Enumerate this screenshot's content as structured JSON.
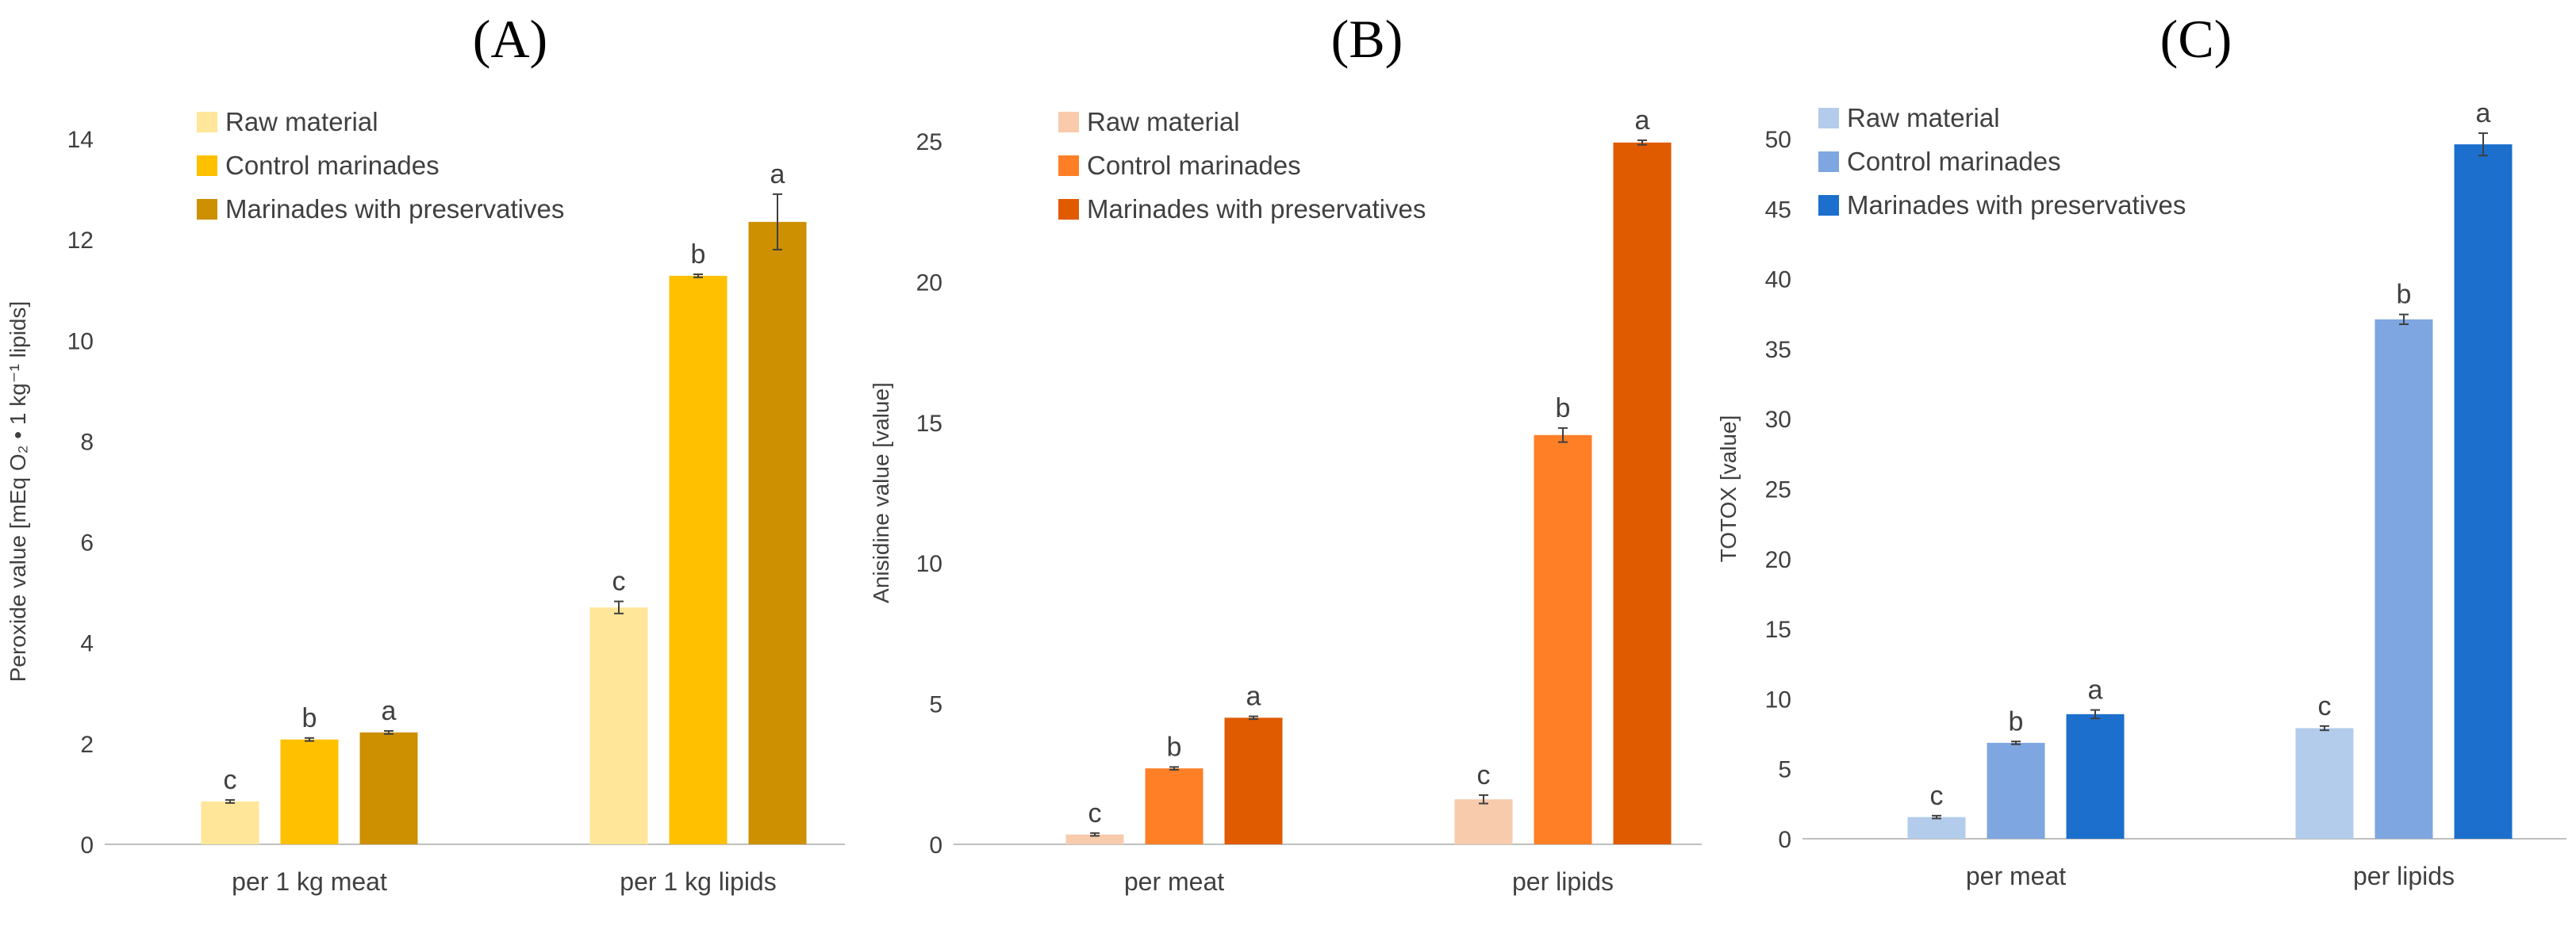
{
  "chart_data": [
    {
      "type": "bar",
      "title": "(A)",
      "ylabel": "Peroxide value [mEq O₂ • 1 kg⁻¹ lipids]",
      "xlabel": "",
      "ylim": [
        0,
        14
      ],
      "yticks": [
        0,
        2,
        4,
        6,
        8,
        10,
        12,
        14
      ],
      "categories": [
        "per 1 kg meat",
        "per 1 kg lipids"
      ],
      "series": [
        {
          "name": "Raw material",
          "color": "#FFE699",
          "values": [
            0.85,
            4.7
          ],
          "errors": [
            0.03,
            0.12
          ],
          "labels": [
            "c",
            "c"
          ]
        },
        {
          "name": "Control marinades",
          "color": "#FFC000",
          "values": [
            2.08,
            11.28
          ],
          "errors": [
            0.03,
            0.03
          ],
          "labels": [
            "b",
            "b"
          ]
        },
        {
          "name": "Marinades with preservatives",
          "color": "#CC9000",
          "values": [
            2.22,
            12.35
          ],
          "errors": [
            0.03,
            0.55
          ],
          "labels": [
            "a",
            "a"
          ]
        }
      ]
    },
    {
      "type": "bar",
      "title": "(B)",
      "ylabel": "Anisidine value [value]",
      "xlabel": "",
      "ylim": [
        0,
        25
      ],
      "yticks": [
        0,
        5,
        10,
        15,
        20,
        25
      ],
      "categories": [
        "per meat",
        "per lipids"
      ],
      "series": [
        {
          "name": "Raw material",
          "color": "#F8CBAD",
          "values": [
            0.35,
            1.6
          ],
          "errors": [
            0.05,
            0.15
          ],
          "labels": [
            "c",
            "c"
          ]
        },
        {
          "name": "Control marinades",
          "color": "#FF7F27",
          "values": [
            2.7,
            14.55
          ],
          "errors": [
            0.05,
            0.25
          ],
          "labels": [
            "b",
            "b"
          ]
        },
        {
          "name": "Marinades with preservatives",
          "color": "#E05A00",
          "values": [
            4.5,
            24.95
          ],
          "errors": [
            0.05,
            0.08
          ],
          "labels": [
            "a",
            "a"
          ]
        }
      ]
    },
    {
      "type": "bar",
      "title": "(C)",
      "ylabel": "TOTOX [value]",
      "xlabel": "",
      "ylim": [
        0,
        50
      ],
      "yticks": [
        0,
        5,
        10,
        15,
        20,
        25,
        30,
        35,
        40,
        45,
        50
      ],
      "categories": [
        "per meat",
        "per lipids"
      ],
      "series": [
        {
          "name": "Raw material",
          "color": "#B4CCEC",
          "values": [
            1.55,
            7.9
          ],
          "errors": [
            0.1,
            0.15
          ],
          "labels": [
            "c",
            "c"
          ]
        },
        {
          "name": "Control marinades",
          "color": "#7EA6E0",
          "values": [
            6.85,
            37.1
          ],
          "errors": [
            0.1,
            0.35
          ],
          "labels": [
            "b",
            "b"
          ]
        },
        {
          "name": "Marinades with preservatives",
          "color": "#1C6FCC",
          "values": [
            8.9,
            49.6
          ],
          "errors": [
            0.3,
            0.8
          ],
          "labels": [
            "a",
            "a"
          ]
        }
      ]
    }
  ]
}
